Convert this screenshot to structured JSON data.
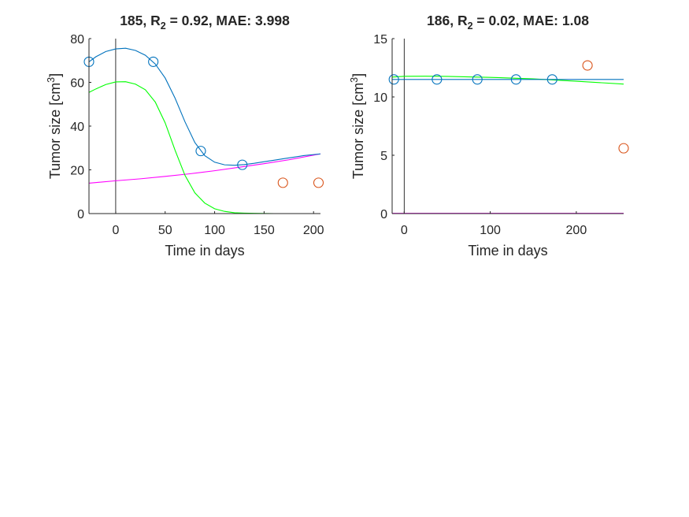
{
  "colors": {
    "fit_curve": "#0072BD",
    "green_curve": "#00FF00",
    "magenta_curve": "#FF00FF",
    "train_marker": "#0072BD",
    "test_marker": "#D95319",
    "axis": "#262626",
    "day0_line": "#000000"
  },
  "chart_data": [
    {
      "type": "line",
      "title": {
        "prefix": "185, R",
        "sub": "2",
        "suffix": " = 0.92, MAE: 3.998"
      },
      "xlabel": "Time in days",
      "ylabel": {
        "main": "Tumor size [cm",
        "sup": "3",
        "end": "]"
      },
      "xlim": [
        -27,
        207
      ],
      "ylim": [
        0,
        80
      ],
      "xticks": [
        0,
        50,
        100,
        150,
        200
      ],
      "yticks": [
        0,
        20,
        40,
        60,
        80
      ],
      "vline_x": 0,
      "fit_curve": {
        "x": [
          -27,
          -20,
          -10,
          0,
          10,
          20,
          30,
          40,
          50,
          60,
          70,
          80,
          90,
          100,
          110,
          120,
          130,
          140,
          150,
          160,
          170,
          180,
          190,
          207
        ],
        "y": [
          69.4,
          71.7,
          74.1,
          75.3,
          75.6,
          74.6,
          72.4,
          68.4,
          62.0,
          52.8,
          42.0,
          32.5,
          26.5,
          23.5,
          22.3,
          22.1,
          22.4,
          23.0,
          23.7,
          24.4,
          25.1,
          25.8,
          26.5,
          27.3
        ]
      },
      "green_curve": {
        "x": [
          -27,
          -20,
          -10,
          0,
          10,
          20,
          30,
          40,
          50,
          60,
          70,
          80,
          90,
          100,
          110,
          120,
          130,
          140,
          160,
          180,
          207
        ],
        "y": [
          55.4,
          57.0,
          59.0,
          60.2,
          60.3,
          59.2,
          56.6,
          51.0,
          41.5,
          29.0,
          17.5,
          9.5,
          4.8,
          2.2,
          1.0,
          0.4,
          0.2,
          0.1,
          0,
          0,
          0
        ]
      },
      "magenta_curve": {
        "x": [
          -27,
          0,
          25,
          50,
          75,
          100,
          125,
          150,
          175,
          207
        ],
        "y": [
          13.9,
          15.0,
          15.9,
          17.0,
          18.2,
          19.6,
          21.2,
          22.8,
          24.6,
          27.3
        ]
      },
      "train_points": [
        {
          "x": -27,
          "y": 69.4
        },
        {
          "x": 38,
          "y": 69.4
        },
        {
          "x": 86,
          "y": 28.6
        },
        {
          "x": 128,
          "y": 22.3
        }
      ],
      "test_points": [
        {
          "x": 169,
          "y": 14.1
        },
        {
          "x": 205,
          "y": 14.1
        }
      ]
    },
    {
      "type": "line",
      "title": {
        "prefix": "186, R",
        "sub": "2",
        "suffix": " = 0.02, MAE: 1.08"
      },
      "xlabel": "Time in days",
      "ylabel": {
        "main": "Tumor size [cm",
        "sup": "3",
        "end": "]"
      },
      "xlim": [
        -14,
        255
      ],
      "ylim": [
        0,
        15
      ],
      "xticks": [
        0,
        100,
        200
      ],
      "yticks": [
        0,
        5,
        10,
        15
      ],
      "vline_x": 0,
      "fit_curve": {
        "x": [
          -14,
          0,
          255
        ],
        "y": [
          11.5,
          11.5,
          11.5
        ]
      },
      "green_curve": {
        "x": [
          -14,
          0,
          25,
          50,
          100,
          150,
          200,
          255
        ],
        "y": [
          11.7,
          11.77,
          11.78,
          11.76,
          11.68,
          11.55,
          11.35,
          11.1
        ]
      },
      "magenta_curve": {
        "x": [
          -14,
          255
        ],
        "y": [
          0.02,
          0.02
        ]
      },
      "train_points": [
        {
          "x": -12,
          "y": 11.5
        },
        {
          "x": 38,
          "y": 11.5
        },
        {
          "x": 85,
          "y": 11.5
        },
        {
          "x": 130,
          "y": 11.5
        },
        {
          "x": 172,
          "y": 11.5
        }
      ],
      "test_points": [
        {
          "x": 213,
          "y": 12.7
        },
        {
          "x": 255,
          "y": 5.6
        }
      ]
    }
  ]
}
